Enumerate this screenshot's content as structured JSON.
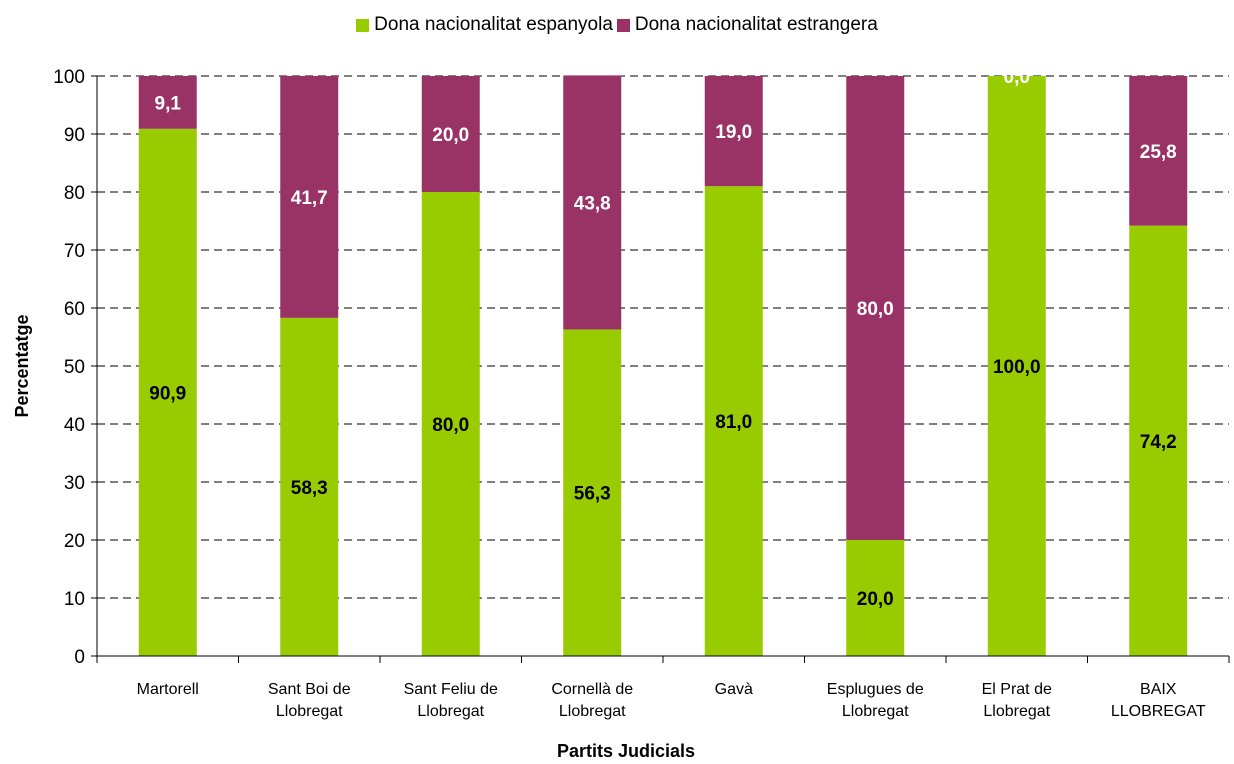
{
  "chart_data": {
    "type": "bar",
    "stacked": true,
    "xlabel": "Partits Judicials",
    "ylabel": "Percentatge",
    "ylim": [
      0,
      100
    ],
    "yticks": [
      0,
      10,
      20,
      30,
      40,
      50,
      60,
      70,
      80,
      90,
      100
    ],
    "grid": "horizontal-dashed",
    "legend_position": "top",
    "categories": [
      [
        "Martorell"
      ],
      [
        "Sant Boi de",
        "Llobregat"
      ],
      [
        "Sant Feliu de",
        "Llobregat"
      ],
      [
        "Cornellà de",
        "Llobregat"
      ],
      [
        "Gavà"
      ],
      [
        "Esplugues de",
        "Llobregat"
      ],
      [
        "El Prat de",
        "Llobregat"
      ],
      [
        "BAIX",
        "LLOBREGAT"
      ]
    ],
    "series": [
      {
        "name": "Dona nacionalitat espanyola",
        "color": "#99cc00",
        "values": [
          90.9,
          58.3,
          80.0,
          56.3,
          81.0,
          20.0,
          100.0,
          74.2
        ],
        "labels": [
          "90,9",
          "58,3",
          "80,0",
          "56,3",
          "81,0",
          "20,0",
          "100,0",
          "74,2"
        ],
        "label_color": "#000000"
      },
      {
        "name": "Dona nacionalitat estrangera",
        "color": "#993366",
        "values": [
          9.1,
          41.7,
          20.0,
          43.8,
          19.0,
          80.0,
          0.0,
          25.8
        ],
        "labels": [
          "9,1",
          "41,7",
          "20,0",
          "43,8",
          "19,0",
          "80,0",
          "0,0",
          "25,8"
        ],
        "label_color": "#ffffff"
      }
    ]
  }
}
